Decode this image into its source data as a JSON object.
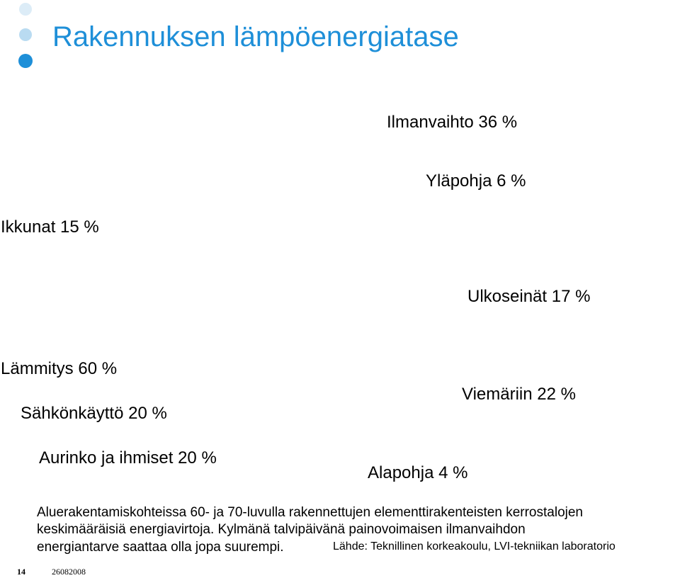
{
  "slide": {
    "title": "Rakennuksen lämpöenergiatase",
    "accent_color": "#1e8fd8",
    "bullet_colors": [
      "#dcecf7",
      "#b9dbf1",
      "#1e8fd8"
    ]
  },
  "labels": {
    "ilmanvaihto": "Ilmanvaihto 36 %",
    "ylapohja": "Yläpohja 6 %",
    "ikkunat": "Ikkunat 15 %",
    "ulkoseinat": "Ulkoseinät 17 %",
    "lammitys": "Lämmitys 60 %",
    "viemariin": "Viemäriin 22 %",
    "sahkonkaytto": "Sähkönkäyttö 20 %",
    "aurinko": "Aurinko ja ihmiset 20 %",
    "alapohja": "Alapohja 4 %"
  },
  "note": {
    "line1": "Aluerakentamiskohteissa 60- ja 70-luvulla rakennettujen elementtirakenteisten kerrostalojen",
    "line2": "keskimääräisiä energiavirtoja. Kylmänä talvipäivänä painovoimaisen ilmanvaihdon",
    "line3": "energiantarve saattaa olla jopa suurempi.",
    "source": "Lähde: Teknillinen korkeakoulu, LVI-tekniikan laboratorio"
  },
  "footer": {
    "page_number": "14",
    "date": "26082008"
  }
}
